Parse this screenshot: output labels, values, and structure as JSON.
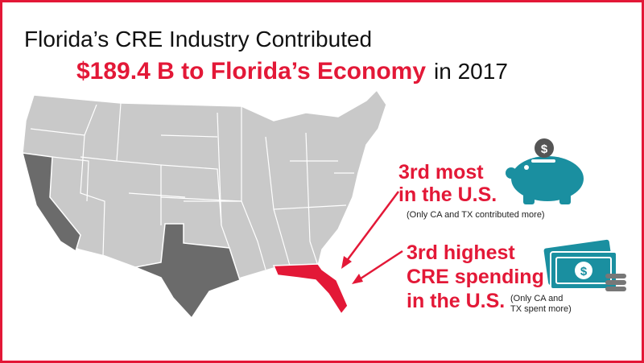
{
  "header": {
    "line1": "Florida’s CRE Industry Contributed",
    "highlight": "$189.4 B to Florida’s Economy",
    "suffix": "in 2017"
  },
  "stats": [
    {
      "lines": [
        "3rd most",
        "in the U.S."
      ],
      "note": [
        "(Only CA and TX contributed more)"
      ]
    },
    {
      "lines": [
        "3rd highest",
        "CRE spending",
        "in the U.S."
      ],
      "note": [
        "(Only CA and",
        "TX spent more)"
      ]
    }
  ]
}
